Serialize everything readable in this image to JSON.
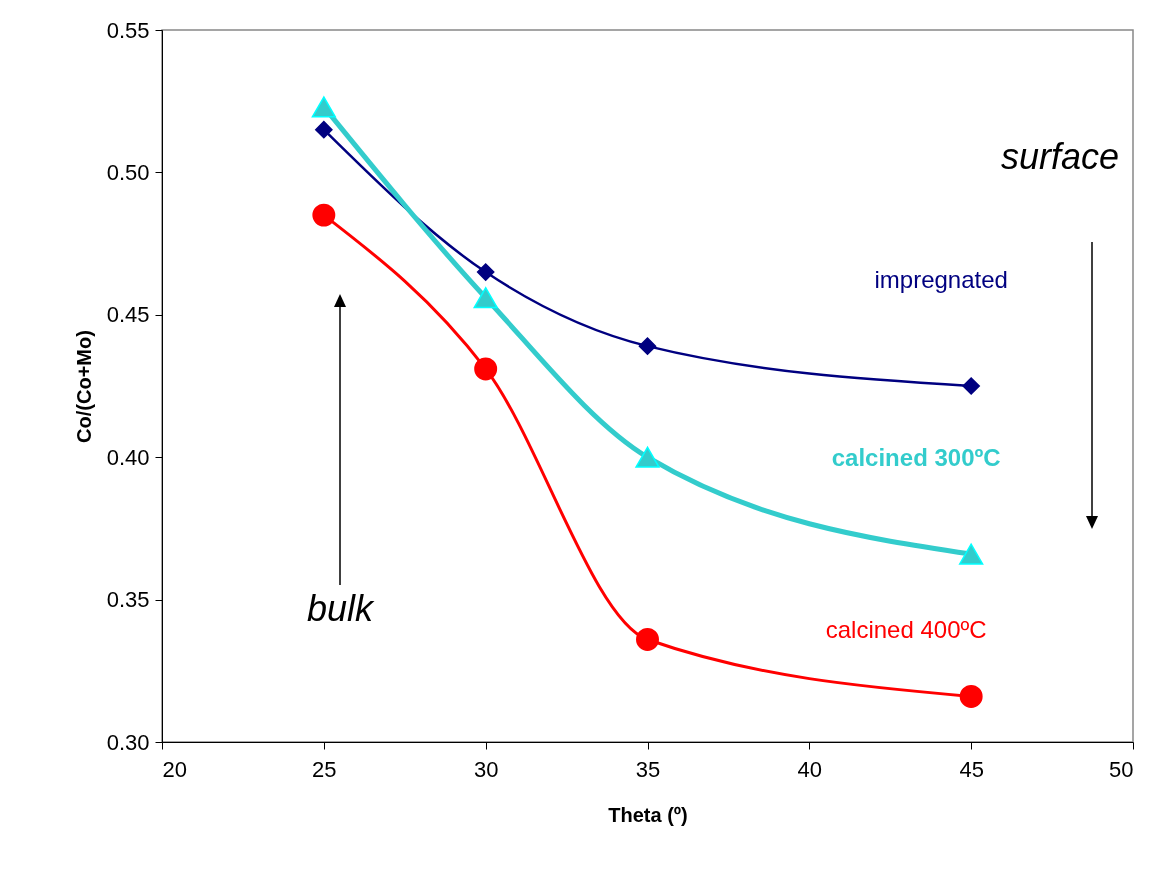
{
  "chart_data": {
    "type": "line",
    "xlabel": "Theta (º)",
    "ylabel": "Co/(Co+Mo)",
    "x": [
      25,
      30,
      35,
      45
    ],
    "series": [
      {
        "name": "impregnated",
        "color": "#000080",
        "marker": "diamond",
        "values": [
          0.515,
          0.465,
          0.439,
          0.425
        ]
      },
      {
        "name": "calcined 300ºC",
        "color": "#33cccc",
        "marker": "triangle",
        "values": [
          0.523,
          0.456,
          0.4,
          0.366
        ]
      },
      {
        "name": "calcined 400ºC",
        "color": "#ff0000",
        "marker": "circle",
        "values": [
          0.485,
          0.431,
          0.336,
          0.316
        ]
      }
    ],
    "xlim": [
      20,
      50
    ],
    "xticks": [
      20,
      25,
      30,
      35,
      40,
      45,
      50
    ],
    "ylim": [
      0.3,
      0.55
    ],
    "yticks": [
      {
        "value": 0.3,
        "label": "0.30"
      },
      {
        "value": 0.35,
        "label": "0.35"
      },
      {
        "value": 0.4,
        "label": "0.40"
      },
      {
        "value": 0.45,
        "label": "0.45"
      },
      {
        "value": 0.5,
        "label": "0.50"
      },
      {
        "value": 0.55,
        "label": "0.55"
      }
    ],
    "annotations": [
      "surface",
      "bulk"
    ],
    "grid": false,
    "line_style": "solid"
  }
}
